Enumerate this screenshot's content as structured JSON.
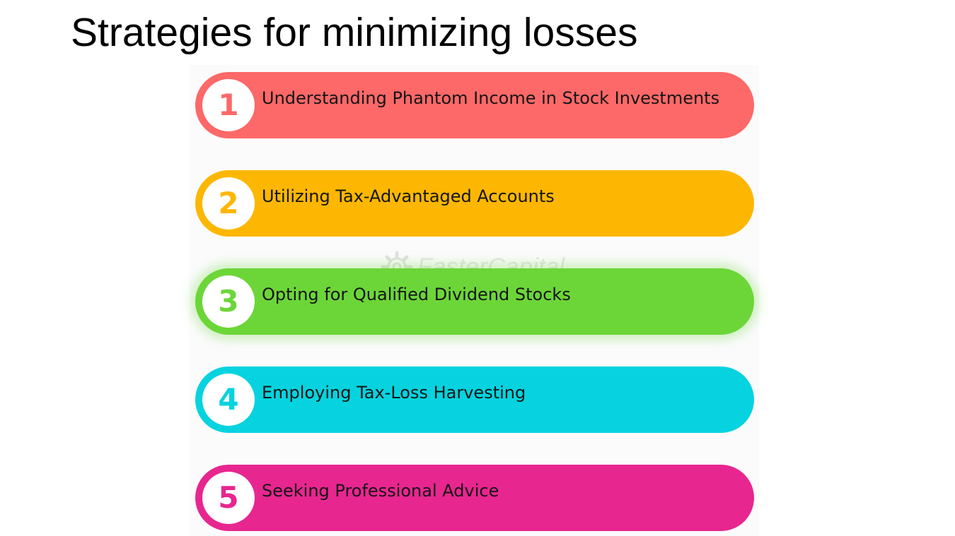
{
  "title": "Strategies for minimizing losses",
  "watermark": {
    "text": "FasterCapital",
    "icon": "gear-logo-icon"
  },
  "items": [
    {
      "number": "1",
      "label": "Understanding Phantom Income in Stock Investments",
      "color": "#fd6868"
    },
    {
      "number": "2",
      "label": "Utilizing Tax-Advantaged Accounts",
      "color": "#fdb702"
    },
    {
      "number": "3",
      "label": "Opting for Qualified Dividend Stocks",
      "color": "#6cd638"
    },
    {
      "number": "4",
      "label": "Employing Tax-Loss Harvesting",
      "color": "#06d3df"
    },
    {
      "number": "5",
      "label": "Seeking Professional Advice",
      "color": "#e8268f"
    }
  ]
}
